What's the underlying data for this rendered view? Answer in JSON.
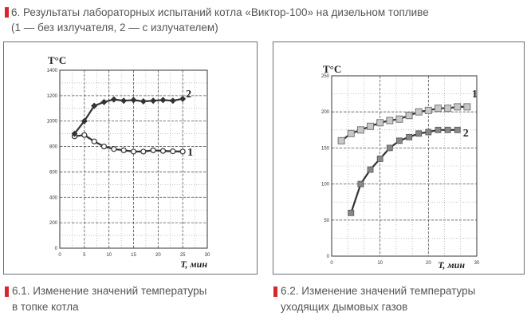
{
  "heading": {
    "line1": "6. Результаты лабораторных испытаний котла «Виктор-100» на дизельном топливе",
    "line2": "(1 — без излучателя, 2 — с излучателем)"
  },
  "colors": {
    "accent": "#d9262c",
    "text": "#555555",
    "curve": "#333333"
  },
  "captions": {
    "c1_line1": "6.1. Изменение значений температуры",
    "c1_line2": "в топке котла",
    "c2_line1": "6.2. Изменение значений температуры",
    "c2_line2": "уходящих дымовых газов"
  },
  "chart_data": [
    {
      "type": "scatter",
      "ylabel": "T°C",
      "xlabel": "T, мин",
      "xlim": [
        0,
        30
      ],
      "ylim": [
        0,
        1400
      ],
      "x_ticks": [
        "0",
        "5",
        "10",
        "15",
        "20",
        "25",
        "30"
      ],
      "y_ticks": [
        "0",
        "200",
        "400",
        "600",
        "800",
        "1000",
        "1200",
        "1400"
      ],
      "grid": true,
      "series": [
        {
          "name": "1",
          "marker": "open-circle",
          "points": [
            [
              3,
              880
            ],
            [
              5,
              890
            ],
            [
              7,
              840
            ],
            [
              9,
              800
            ],
            [
              11,
              780
            ],
            [
              13,
              770
            ],
            [
              15,
              760
            ],
            [
              17,
              760
            ],
            [
              19,
              770
            ],
            [
              21,
              765
            ],
            [
              23,
              762
            ],
            [
              25,
              760
            ]
          ]
        },
        {
          "name": "2",
          "marker": "filled-diamond",
          "points": [
            [
              3,
              900
            ],
            [
              5,
              1000
            ],
            [
              7,
              1120
            ],
            [
              9,
              1150
            ],
            [
              11,
              1170
            ],
            [
              13,
              1160
            ],
            [
              15,
              1165
            ],
            [
              17,
              1155
            ],
            [
              19,
              1160
            ],
            [
              21,
              1165
            ],
            [
              23,
              1160
            ],
            [
              25,
              1175
            ]
          ]
        }
      ]
    },
    {
      "type": "scatter",
      "ylabel": "T°C",
      "xlabel": "T, мин",
      "xlim": [
        0,
        30
      ],
      "ylim": [
        0,
        250
      ],
      "x_ticks": [
        "0",
        "10",
        "20",
        "30"
      ],
      "y_ticks": [
        "0",
        "50",
        "100",
        "150",
        "200",
        "250"
      ],
      "grid": true,
      "series": [
        {
          "name": "1",
          "marker": "open-square",
          "points": [
            [
              2,
              160
            ],
            [
              4,
              170
            ],
            [
              6,
              175
            ],
            [
              8,
              180
            ],
            [
              10,
              185
            ],
            [
              12,
              188
            ],
            [
              14,
              190
            ],
            [
              16,
              195
            ],
            [
              18,
              200
            ],
            [
              20,
              202
            ],
            [
              22,
              205
            ],
            [
              24,
              205
            ],
            [
              26,
              207
            ],
            [
              28,
              207
            ]
          ]
        },
        {
          "name": "2",
          "marker": "filled-square",
          "points": [
            [
              4,
              60
            ],
            [
              6,
              100
            ],
            [
              8,
              120
            ],
            [
              10,
              135
            ],
            [
              12,
              150
            ],
            [
              14,
              160
            ],
            [
              16,
              165
            ],
            [
              18,
              170
            ],
            [
              20,
              172
            ],
            [
              22,
              175
            ],
            [
              24,
              175
            ],
            [
              26,
              175
            ]
          ]
        }
      ]
    }
  ]
}
